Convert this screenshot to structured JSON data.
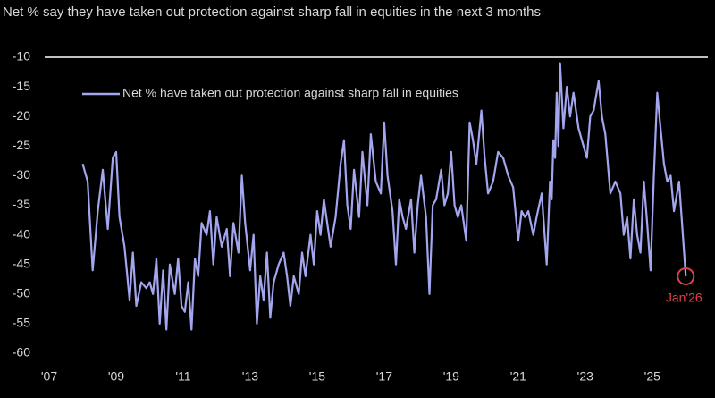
{
  "chart_data": {
    "type": "line",
    "title": "Net % say they have taken out protection against sharp fall in equities in the next 3 months",
    "annotation": "Jan'26",
    "legend": "upper left",
    "xlim": [
      2007,
      2026.5
    ],
    "xticks": [
      {
        "value": 2007,
        "label": "'07"
      },
      {
        "value": 2009,
        "label": "'09"
      },
      {
        "value": 2011,
        "label": "'11"
      },
      {
        "value": 2013,
        "label": "'13"
      },
      {
        "value": 2015,
        "label": "'15"
      },
      {
        "value": 2017,
        "label": "'17"
      },
      {
        "value": 2019,
        "label": "'19"
      },
      {
        "value": 2021,
        "label": "'21"
      },
      {
        "value": 2023,
        "label": "'23"
      },
      {
        "value": 2025,
        "label": "'25"
      }
    ],
    "ylim": [
      -60,
      -10
    ],
    "yticks": [
      -10,
      -15,
      -20,
      -25,
      -30,
      -35,
      -40,
      -45,
      -50,
      -55,
      -60
    ],
    "series": [
      {
        "name": "Net % have taken out protection against sharp fall in equities",
        "color": "#a3a6ee",
        "x": [
          2008.0,
          2008.15,
          2008.3,
          2008.45,
          2008.6,
          2008.75,
          2008.9,
          2009.0,
          2009.1,
          2009.25,
          2009.4,
          2009.5,
          2009.6,
          2009.75,
          2009.9,
          2010.0,
          2010.1,
          2010.2,
          2010.3,
          2010.4,
          2010.5,
          2010.6,
          2010.75,
          2010.85,
          2010.95,
          2011.05,
          2011.15,
          2011.25,
          2011.35,
          2011.45,
          2011.55,
          2011.7,
          2011.8,
          2011.9,
          2012.0,
          2012.15,
          2012.3,
          2012.4,
          2012.5,
          2012.65,
          2012.75,
          2012.85,
          2013.0,
          2013.1,
          2013.2,
          2013.3,
          2013.4,
          2013.5,
          2013.6,
          2013.7,
          2013.85,
          2014.0,
          2014.1,
          2014.2,
          2014.3,
          2014.45,
          2014.55,
          2014.65,
          2014.8,
          2014.9,
          2015.0,
          2015.1,
          2015.2,
          2015.3,
          2015.4,
          2015.55,
          2015.7,
          2015.8,
          2015.9,
          2016.0,
          2016.1,
          2016.25,
          2016.35,
          2016.5,
          2016.6,
          2016.75,
          2016.9,
          2017.0,
          2017.1,
          2017.25,
          2017.35,
          2017.45,
          2017.55,
          2017.65,
          2017.8,
          2017.9,
          2018.0,
          2018.1,
          2018.25,
          2018.35,
          2018.45,
          2018.55,
          2018.7,
          2018.8,
          2018.9,
          2019.0,
          2019.1,
          2019.2,
          2019.3,
          2019.45,
          2019.55,
          2019.65,
          2019.75,
          2019.9,
          2020.0,
          2020.1,
          2020.25,
          2020.4,
          2020.55,
          2020.7,
          2020.85,
          2021.0,
          2021.1,
          2021.2,
          2021.3,
          2021.45,
          2021.55,
          2021.7,
          2021.85,
          2021.95,
          2022.0,
          2022.05,
          2022.1,
          2022.15,
          2022.2,
          2022.25,
          2022.35,
          2022.45,
          2022.55,
          2022.65,
          2022.8,
          2022.95,
          2023.05,
          2023.15,
          2023.25,
          2023.4,
          2023.5,
          2023.6,
          2023.75,
          2023.9,
          2024.05,
          2024.15,
          2024.25,
          2024.35,
          2024.45,
          2024.55,
          2024.65,
          2024.75,
          2024.85,
          2024.95,
          2025.05,
          2025.15,
          2025.25,
          2025.35,
          2025.45,
          2025.55,
          2025.65,
          2025.8,
          2026.0
        ],
        "values": [
          -28,
          -31,
          -46,
          -36,
          -29,
          -39,
          -27,
          -26,
          -37,
          -42,
          -51,
          -43,
          -52,
          -48,
          -49,
          -48,
          -50,
          -44,
          -55,
          -46,
          -56,
          -45,
          -50,
          -44,
          -52,
          -53,
          -48,
          -56,
          -44,
          -47,
          -38,
          -40,
          -36,
          -45,
          -37,
          -42,
          -39,
          -47,
          -38,
          -43,
          -30,
          -38,
          -46,
          -40,
          -55,
          -47,
          -51,
          -43,
          -54,
          -48,
          -45,
          -43,
          -47,
          -52,
          -47,
          -50,
          -43,
          -47,
          -40,
          -45,
          -36,
          -40,
          -34,
          -38,
          -42,
          -37,
          -28,
          -24,
          -35,
          -39,
          -29,
          -37,
          -26,
          -35,
          -23,
          -31,
          -33,
          -21,
          -30,
          -36,
          -45,
          -34,
          -37,
          -39,
          -34,
          -43,
          -35,
          -30,
          -37,
          -50,
          -35,
          -34,
          -29,
          -35,
          -33,
          -26,
          -35,
          -37,
          -35,
          -41,
          -21,
          -24,
          -28,
          -19,
          -27,
          -33,
          -31,
          -26,
          -27,
          -30,
          -32,
          -41,
          -36,
          -37,
          -36,
          -40,
          -37,
          -33,
          -45,
          -31,
          -34,
          -24,
          -27,
          -16,
          -25,
          -11,
          -22,
          -15,
          -20,
          -16,
          -22,
          -25,
          -27,
          -20,
          -19,
          -14,
          -20,
          -23,
          -33,
          -31,
          -33,
          -40,
          -37,
          -44,
          -34,
          -40,
          -43,
          -31,
          -38,
          -46,
          -30,
          -16,
          -22,
          -28,
          -31,
          -30,
          -36,
          -31,
          -47
        ]
      }
    ]
  }
}
